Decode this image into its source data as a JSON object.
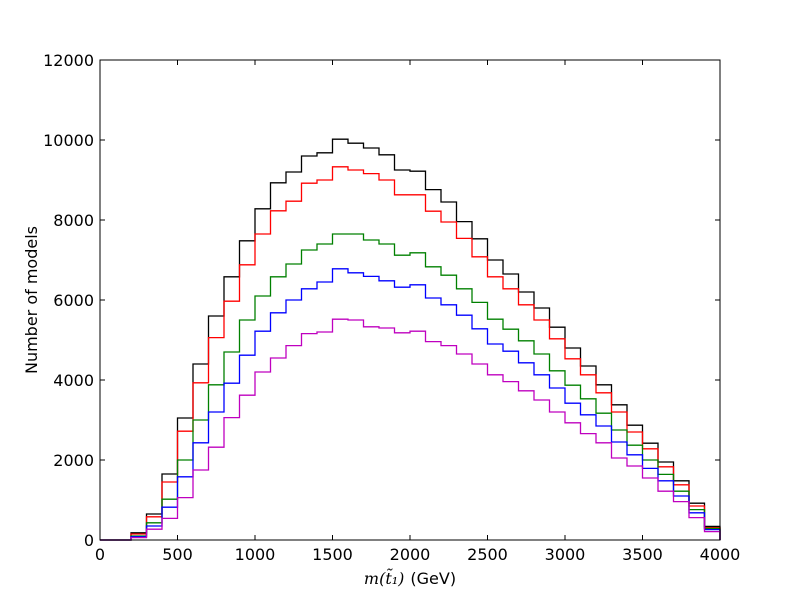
{
  "chart_data": {
    "type": "line",
    "subtype": "step-histogram",
    "title": "",
    "xlabel_math": "m(t̃₁)",
    "xlabel_unit": "(GeV)",
    "ylabel": "Number of models",
    "xlim": [
      0,
      4000
    ],
    "ylim": [
      0,
      12000
    ],
    "xticks": [
      "0",
      "500",
      "1000",
      "1500",
      "2000",
      "2500",
      "3000",
      "3500",
      "4000"
    ],
    "yticks": [
      "0",
      "2000",
      "4000",
      "6000",
      "8000",
      "10000",
      "12000"
    ],
    "grid": false,
    "legend": "none",
    "bin_edges": [
      0,
      100,
      200,
      300,
      400,
      500,
      600,
      700,
      800,
      900,
      1000,
      1100,
      1200,
      1300,
      1400,
      1500,
      1600,
      1700,
      1800,
      1900,
      2000,
      2100,
      2200,
      2300,
      2400,
      2500,
      2600,
      2700,
      2800,
      2900,
      3000,
      3100,
      3200,
      3300,
      3400,
      3500,
      3600,
      3700,
      3800,
      3900,
      4000
    ],
    "series": [
      {
        "color": "#000000",
        "values": [
          0,
          0,
          180,
          650,
          1650,
          3050,
          4400,
          5600,
          6580,
          7480,
          8280,
          8930,
          9200,
          9600,
          9680,
          10020,
          9920,
          9800,
          9630,
          9250,
          9220,
          8760,
          8450,
          7960,
          7530,
          7000,
          6650,
          6200,
          5800,
          5320,
          4800,
          4350,
          3880,
          3380,
          2870,
          2420,
          1950,
          1480,
          920,
          340
        ]
      },
      {
        "color": "#ff0000",
        "values": [
          0,
          0,
          150,
          580,
          1450,
          2720,
          3930,
          5060,
          5970,
          6880,
          7650,
          8230,
          8470,
          8920,
          9000,
          9330,
          9250,
          9160,
          9000,
          8630,
          8630,
          8220,
          7950,
          7540,
          7080,
          6580,
          6280,
          5880,
          5500,
          5030,
          4530,
          4130,
          3680,
          3200,
          2700,
          2280,
          1830,
          1380,
          850,
          310
        ]
      },
      {
        "color": "#008000",
        "values": [
          0,
          0,
          100,
          430,
          1020,
          2000,
          3000,
          3880,
          4700,
          5500,
          6100,
          6580,
          6900,
          7250,
          7400,
          7650,
          7650,
          7500,
          7400,
          7120,
          7180,
          6830,
          6620,
          6280,
          5940,
          5520,
          5270,
          4980,
          4650,
          4230,
          3870,
          3530,
          3170,
          2750,
          2370,
          2000,
          1640,
          1220,
          760,
          290
        ]
      },
      {
        "color": "#0000ff",
        "values": [
          0,
          0,
          80,
          350,
          820,
          1580,
          2430,
          3200,
          3920,
          4620,
          5220,
          5680,
          6000,
          6280,
          6450,
          6780,
          6680,
          6590,
          6480,
          6320,
          6380,
          6050,
          5880,
          5620,
          5280,
          4900,
          4720,
          4430,
          4130,
          3800,
          3420,
          3130,
          2850,
          2450,
          2130,
          1790,
          1480,
          1100,
          680,
          260
        ]
      },
      {
        "color": "#bf00bf",
        "values": [
          0,
          0,
          60,
          270,
          540,
          1060,
          1750,
          2320,
          3060,
          3620,
          4200,
          4550,
          4860,
          5160,
          5200,
          5520,
          5500,
          5330,
          5300,
          5180,
          5220,
          4960,
          4860,
          4650,
          4400,
          4130,
          3960,
          3730,
          3500,
          3200,
          2930,
          2660,
          2430,
          2050,
          1850,
          1550,
          1220,
          960,
          560,
          210
        ]
      }
    ]
  }
}
